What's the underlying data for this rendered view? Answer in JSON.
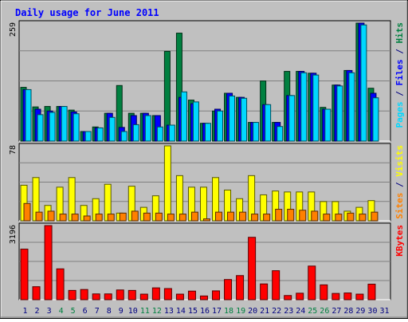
{
  "chart_data": {
    "type": "bar",
    "title": "Daily usage for June 2011",
    "categories": [
      "1",
      "2",
      "3",
      "4",
      "5",
      "6",
      "7",
      "8",
      "9",
      "10",
      "11",
      "12",
      "13",
      "14",
      "15",
      "16",
      "17",
      "18",
      "19",
      "20",
      "21",
      "22",
      "23",
      "24",
      "25",
      "26",
      "27",
      "28",
      "29",
      "30",
      "31"
    ],
    "weekend_days": [
      "4",
      "5",
      "11",
      "12",
      "18",
      "19",
      "25",
      "26"
    ],
    "panels": [
      {
        "id": "hits",
        "max_label": "259",
        "ymax": 259,
        "series": [
          {
            "name": "Hits",
            "color": "#008040",
            "values": [
              118,
              75,
              76,
              76,
              68,
              21,
              31,
              61,
              122,
              61,
              61,
              56,
              197,
              237,
              90,
              39,
              66,
              105,
              96,
              41,
              132,
              41,
              153,
              153,
              149,
              74,
              123,
              155,
              259,
              116,
              0
            ]
          },
          {
            "name": "Files",
            "color": "#0000ff",
            "values": [
              113,
              70,
              66,
              76,
              64,
              21,
              29,
              61,
              30,
              56,
              61,
              56,
              35,
              96,
              82,
              39,
              70,
              105,
              96,
              41,
              80,
              41,
              100,
              153,
              149,
              70,
              123,
              155,
              259,
              105,
              0
            ]
          },
          {
            "name": "Pages",
            "color": "#00d8ff",
            "values": [
              113,
              58,
              63,
              76,
              60,
              21,
              29,
              52,
              21,
              36,
              56,
              31,
              35,
              108,
              86,
              39,
              66,
              99,
              94,
              41,
              80,
              32,
              100,
              150,
              145,
              70,
              121,
              150,
              255,
              95,
              0
            ]
          }
        ]
      },
      {
        "id": "visits",
        "max_label": "78",
        "ymax": 78,
        "series": [
          {
            "name": "Visits",
            "color": "#ffff00",
            "values": [
              37,
              45,
              16,
              35,
              45,
              16,
              23,
              38,
              8,
              36,
              14,
              26,
              78,
              47,
              35,
              35,
              45,
              32,
              23,
              47,
              27,
              31,
              30,
              30,
              30,
              20,
              20,
              10,
              14,
              21,
              0
            ]
          },
          {
            "name": "Sites",
            "color": "#ff8000",
            "values": [
              18,
              9,
              10,
              7,
              7,
              5,
              7,
              7,
              8,
              10,
              8,
              8,
              7,
              7,
              9,
              2,
              9,
              9,
              9,
              7,
              7,
              12,
              12,
              11,
              10,
              7,
              7,
              8,
              7,
              9,
              0
            ]
          }
        ]
      },
      {
        "id": "kbytes",
        "max_label": "3196",
        "ymax": 3196,
        "series": [
          {
            "name": "KBytes",
            "color": "#ff0000",
            "values": [
              2180,
              560,
              3196,
              1330,
              400,
              440,
              250,
              250,
              420,
              400,
              240,
              510,
              480,
              240,
              370,
              160,
              380,
              870,
              1040,
              2690,
              680,
              1250,
              180,
              280,
              1450,
              640,
              270,
              290,
              240,
              670,
              0
            ]
          }
        ]
      }
    ],
    "legend_right": {
      "hits": [
        {
          "text": "Pages",
          "color": "#00d8ff"
        },
        {
          "text": " / ",
          "color": "#000080"
        },
        {
          "text": "Files",
          "color": "#0000ff"
        },
        {
          "text": " / ",
          "color": "#000080"
        },
        {
          "text": "Hits",
          "color": "#008040"
        }
      ],
      "visits": [
        {
          "text": "Sites",
          "color": "#ff8000"
        },
        {
          "text": " / ",
          "color": "#000080"
        },
        {
          "text": "Visits",
          "color": "#ffff00"
        }
      ],
      "kbytes": [
        {
          "text": "KBytes",
          "color": "#ff0000"
        }
      ]
    },
    "colors": {
      "plot_bg": "#c0c0c0",
      "grid": "#808080",
      "title": "#0000ff",
      "weekday_label": "#000080",
      "weekend_label": "#008040"
    }
  }
}
